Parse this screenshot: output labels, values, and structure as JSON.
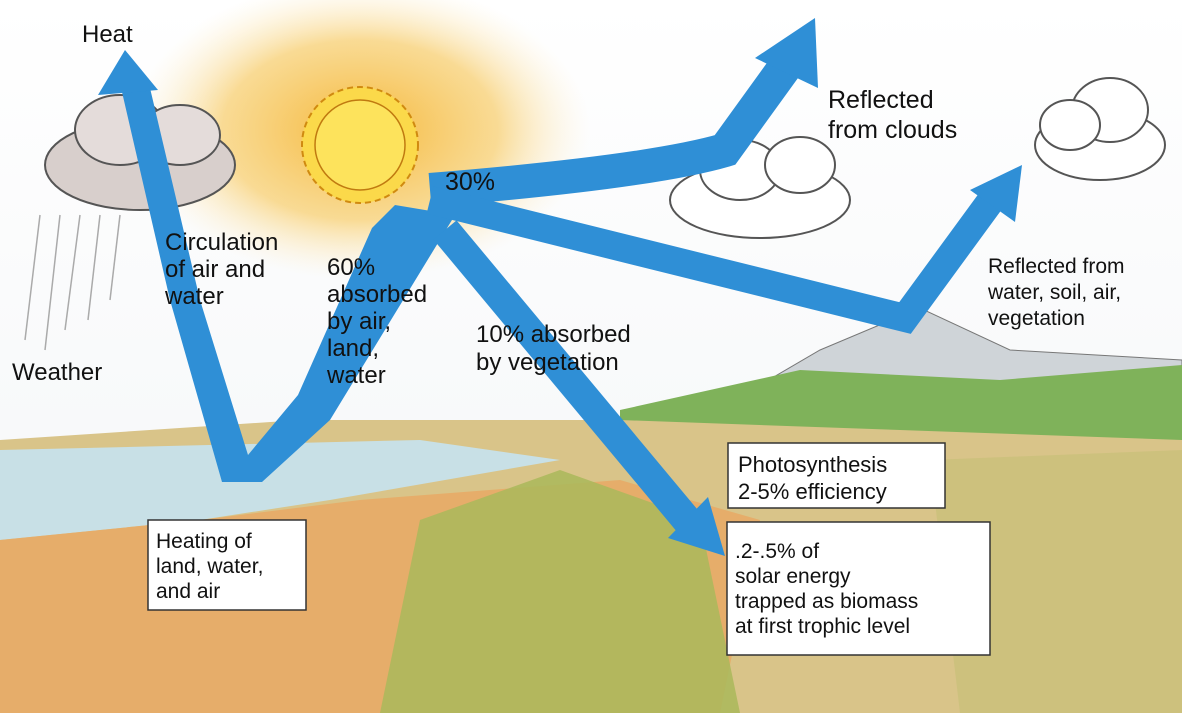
{
  "title": null,
  "labels": [
    {
      "lines": [
        "Heat"
      ]
    },
    {
      "lines": [
        "Reflected",
        "from clouds"
      ]
    },
    {
      "lines": [
        "30%"
      ]
    },
    {
      "lines": [
        "Circulation",
        "of air and",
        "water"
      ]
    },
    {
      "lines": [
        "60%",
        "absorbed",
        "by air,",
        "land,",
        "water"
      ]
    },
    {
      "lines": [
        "10% absorbed",
        "by vegetation"
      ]
    },
    {
      "lines": [
        "Reflected from",
        "water, soil, air,",
        "vegetation"
      ]
    },
    {
      "lines": [
        "Weather"
      ]
    },
    {
      "lines": [
        "Photosynthesis",
        "2-5% efficiency"
      ]
    },
    {
      "lines": [
        "Heating of",
        "land, water,",
        "and air"
      ]
    },
    {
      "lines": [
        ".2-.5% of",
        "solar energy",
        "trapped as biomass",
        "at first trophic level"
      ]
    }
  ]
}
